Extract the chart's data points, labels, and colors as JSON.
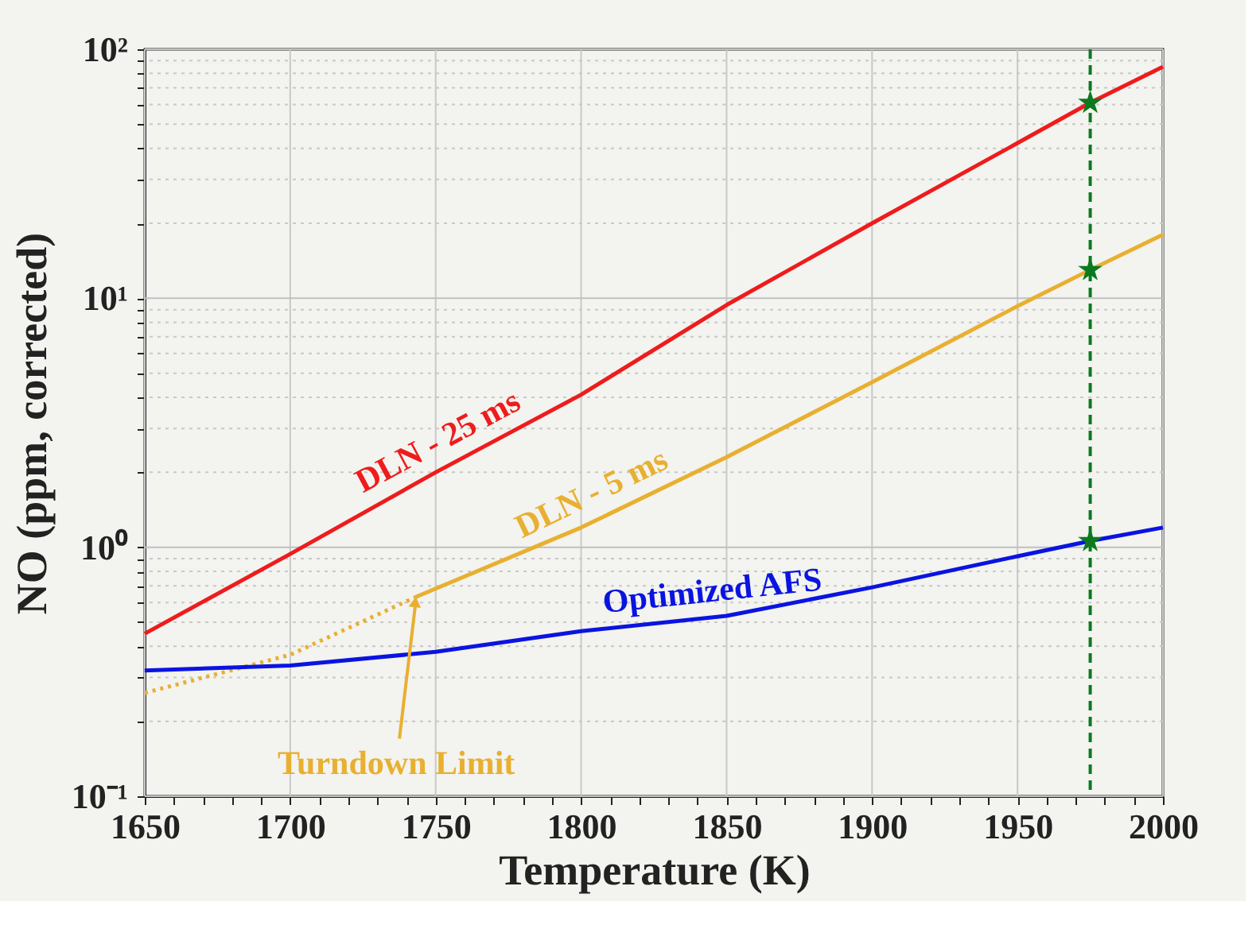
{
  "chart_data": {
    "type": "line",
    "xlabel": "Temperature (K)",
    "ylabel": "NO (ppm, corrected)",
    "log": "y",
    "grid": true,
    "legend": false,
    "xlim": [
      1650,
      2000
    ],
    "ylim": [
      0.1,
      100
    ],
    "xticks": [
      1650,
      {
        "value": 1660,
        "label": null
      },
      {
        "value": 1670,
        "label": null
      },
      {
        "value": 1680,
        "label": null
      },
      {
        "value": 1690,
        "label": null
      },
      1700,
      {
        "value": 1710,
        "label": null
      },
      {
        "value": 1720,
        "label": null
      },
      {
        "value": 1730,
        "label": null
      },
      {
        "value": 1740,
        "label": null
      },
      1750,
      {
        "value": 1760,
        "label": null
      },
      {
        "value": 1770,
        "label": null
      },
      {
        "value": 1780,
        "label": null
      },
      {
        "value": 1790,
        "label": null
      },
      1800,
      {
        "value": 1810,
        "label": null
      },
      {
        "value": 1820,
        "label": null
      },
      {
        "value": 1830,
        "label": null
      },
      {
        "value": 1840,
        "label": null
      },
      1850,
      {
        "value": 1860,
        "label": null
      },
      {
        "value": 1870,
        "label": null
      },
      {
        "value": 1880,
        "label": null
      },
      {
        "value": 1890,
        "label": null
      },
      1900,
      {
        "value": 1910,
        "label": null
      },
      {
        "value": 1920,
        "label": null
      },
      {
        "value": 1930,
        "label": null
      },
      {
        "value": 1940,
        "label": null
      },
      1950,
      {
        "value": 1960,
        "label": null
      },
      {
        "value": 1970,
        "label": null
      },
      {
        "value": 1980,
        "label": null
      },
      {
        "value": 1990,
        "label": null
      },
      2000
    ],
    "yticks": [
      {
        "value": 0.1,
        "label": "10⁻¹"
      },
      {
        "value": 0.2,
        "label": null
      },
      {
        "value": 0.3,
        "label": null
      },
      {
        "value": 0.4,
        "label": null
      },
      {
        "value": 0.5,
        "label": null
      },
      {
        "value": 0.6,
        "label": null
      },
      {
        "value": 0.7,
        "label": null
      },
      {
        "value": 0.8,
        "label": null
      },
      {
        "value": 0.9,
        "label": null
      },
      {
        "value": 1,
        "label": "10⁰"
      },
      {
        "value": 2,
        "label": null
      },
      {
        "value": 3,
        "label": null
      },
      {
        "value": 4,
        "label": null
      },
      {
        "value": 5,
        "label": null
      },
      {
        "value": 6,
        "label": null
      },
      {
        "value": 7,
        "label": null
      },
      {
        "value": 8,
        "label": null
      },
      {
        "value": 9,
        "label": null
      },
      {
        "value": 10,
        "label": "10¹"
      },
      {
        "value": 20,
        "label": null
      },
      {
        "value": 30,
        "label": null
      },
      {
        "value": 40,
        "label": null
      },
      {
        "value": 50,
        "label": null
      },
      {
        "value": 60,
        "label": null
      },
      {
        "value": 70,
        "label": null
      },
      {
        "value": 80,
        "label": null
      },
      {
        "value": 90,
        "label": null
      },
      {
        "value": 100,
        "label": "10²"
      }
    ],
    "series": [
      {
        "name": "DLN - 25 ms",
        "color": "#ee1c1c",
        "line_style": "solid",
        "x": [
          1650,
          1700,
          1750,
          1800,
          1850,
          1900,
          1950,
          1975,
          2000
        ],
        "values": [
          0.45,
          0.94,
          2.0,
          4.1,
          9.4,
          20,
          42,
          61,
          85
        ]
      },
      {
        "color": "#e8b030",
        "line_style": "dotted",
        "x": [
          1650,
          1700,
          1743
        ],
        "values": [
          0.26,
          0.37,
          0.63
        ]
      },
      {
        "name": "DLN - 5 ms",
        "color": "#e8b030",
        "line_style": "solid",
        "x": [
          1743,
          1800,
          1850,
          1900,
          1950,
          1975,
          2000
        ],
        "values": [
          0.63,
          1.2,
          2.3,
          4.6,
          9.3,
          13,
          18
        ]
      },
      {
        "name": "Optimized AFS",
        "color": "#0a14e0",
        "line_style": "solid",
        "x": [
          1650,
          1700,
          1750,
          1800,
          1850,
          1900,
          1950,
          1975,
          2000
        ],
        "values": [
          0.32,
          0.335,
          0.38,
          0.46,
          0.53,
          0.69,
          0.92,
          1.06,
          1.2
        ]
      },
      {
        "type": "scatter",
        "marker": "star",
        "color": "#0b7a1e",
        "x": [
          1975,
          1975,
          1975
        ],
        "values": [
          61,
          13,
          1.06
        ]
      }
    ],
    "ref_lines": [
      {
        "axis": "x",
        "value": 1975,
        "color": "#0b7a1e",
        "line_style": "dashed"
      }
    ],
    "annotations": [
      {
        "text": "Turndown Limit",
        "x": 1743,
        "y": 0.63
      }
    ]
  }
}
